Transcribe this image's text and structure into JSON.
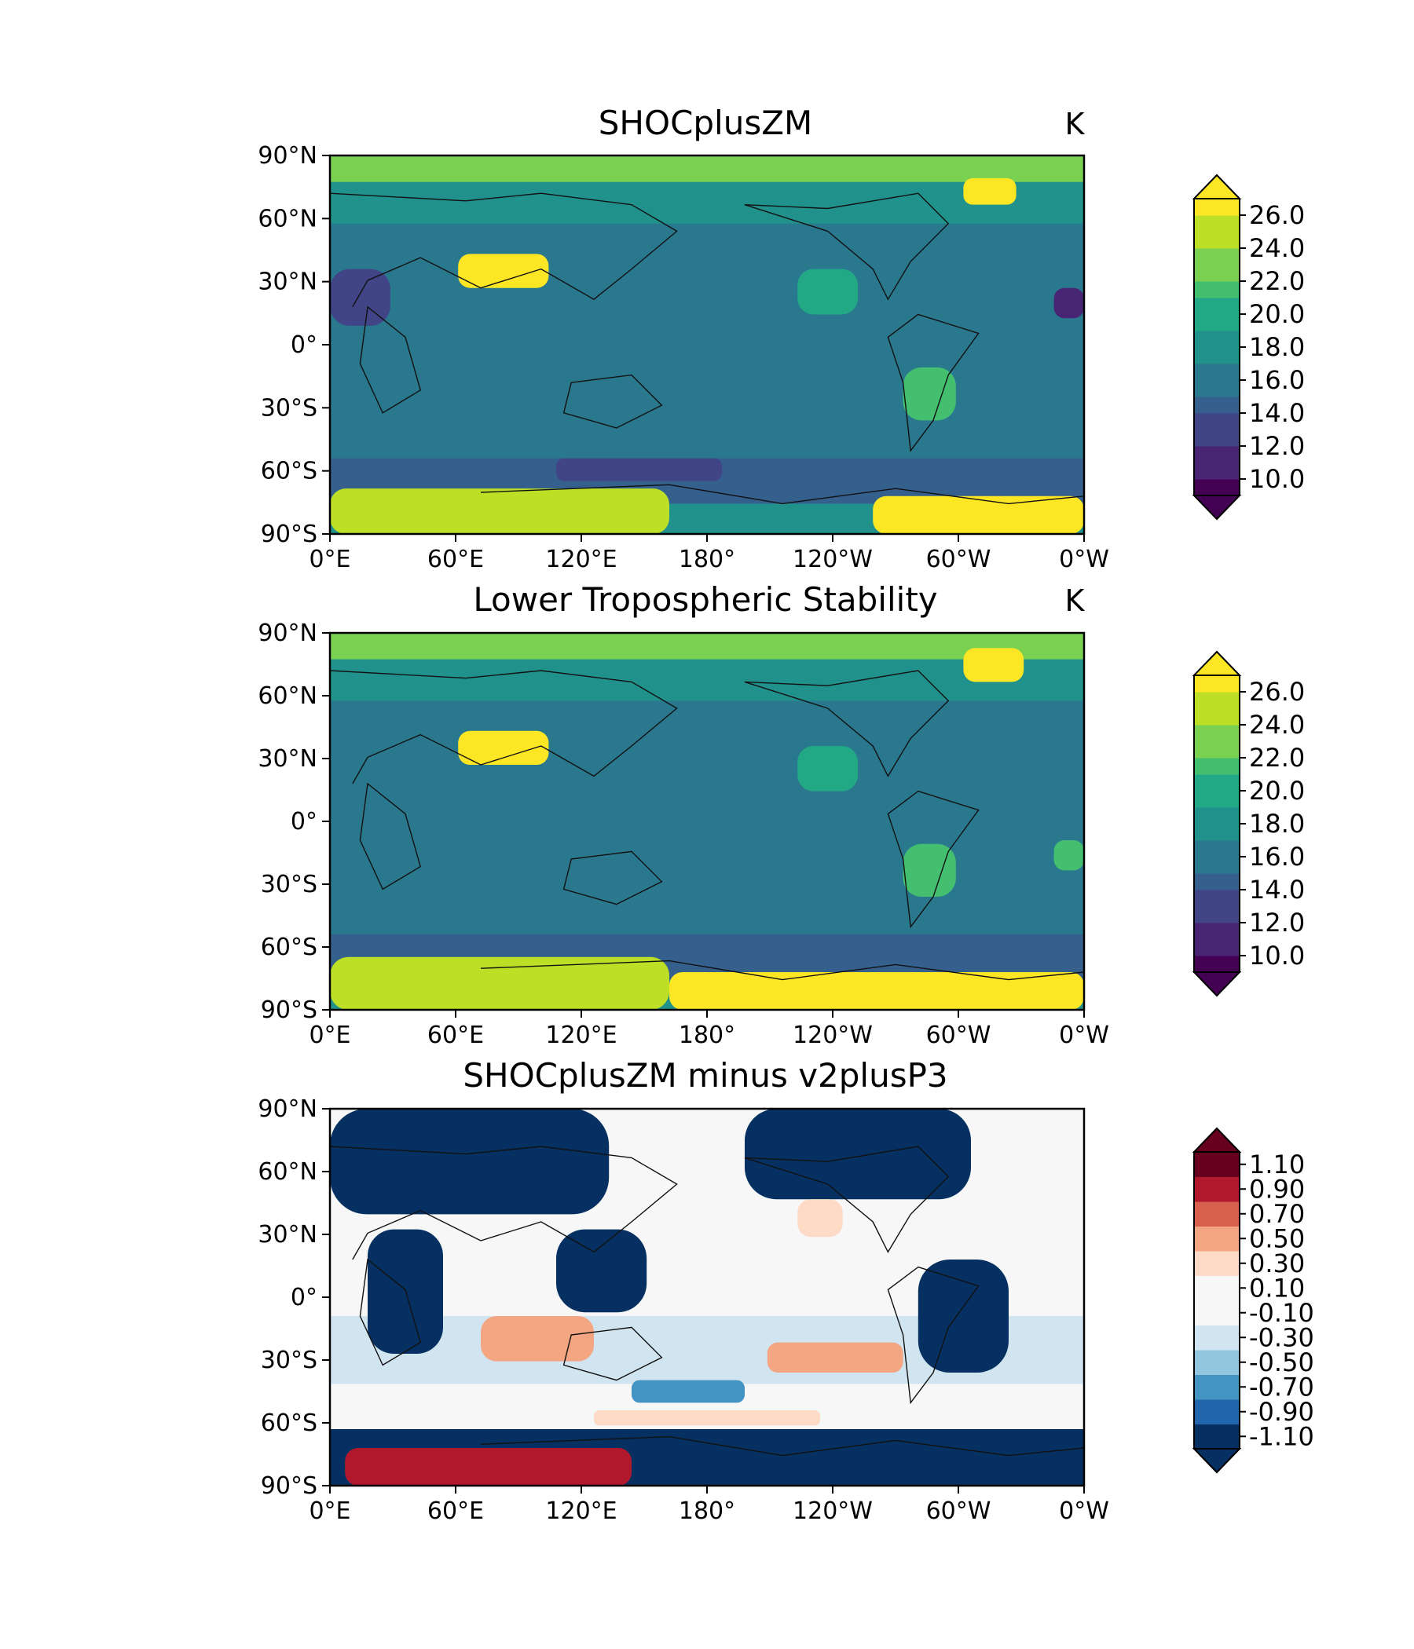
{
  "figure": {
    "panels": [
      {
        "title": "SHOCplusZM",
        "units": "K",
        "colormap": "viridis",
        "colorbar": {
          "levels": [
            9,
            10,
            11,
            12,
            13,
            14,
            15,
            16,
            17,
            18,
            19,
            20,
            21,
            22,
            23,
            24,
            25,
            26,
            27
          ],
          "ticks": [
            "26.0",
            "24.0",
            "22.0",
            "20.0",
            "18.0",
            "16.0",
            "14.0",
            "12.0",
            "10.0"
          ],
          "extend": "both"
        }
      },
      {
        "title": "Lower Tropospheric Stability",
        "units": "K",
        "colormap": "viridis",
        "colorbar": {
          "levels": [
            9,
            10,
            11,
            12,
            13,
            14,
            15,
            16,
            17,
            18,
            19,
            20,
            21,
            22,
            23,
            24,
            25,
            26,
            27
          ],
          "ticks": [
            "26.0",
            "24.0",
            "22.0",
            "20.0",
            "18.0",
            "16.0",
            "14.0",
            "12.0",
            "10.0"
          ],
          "extend": "both"
        }
      },
      {
        "title": "SHOCplusZM minus v2plusP3",
        "units": "",
        "colormap": "RdBu_r",
        "colorbar": {
          "levels": [
            -1.2,
            -1.0,
            -0.8,
            -0.6,
            -0.4,
            -0.2,
            0.0,
            0.2,
            0.4,
            0.6,
            0.8,
            1.0,
            1.2
          ],
          "ticks": [
            "1.10",
            "0.90",
            "0.70",
            "0.50",
            "0.30",
            "0.10",
            "-0.10",
            "-0.30",
            "-0.50",
            "-0.70",
            "-0.90",
            "-1.10"
          ],
          "extend": "both"
        }
      }
    ],
    "axes": {
      "lat_ticks": [
        "90°N",
        "60°N",
        "30°N",
        "0°",
        "30°S",
        "60°S",
        "90°S"
      ],
      "lon_ticks": [
        "0°E",
        "60°E",
        "120°E",
        "180°",
        "120°W",
        "60°W",
        "0°W"
      ]
    },
    "projection": "PlateCarree, central longitude 180°",
    "colors": {
      "viridis": [
        "#440154",
        "#482475",
        "#414487",
        "#355f8d",
        "#2a788e",
        "#21918c",
        "#22a884",
        "#44bf70",
        "#7ad151",
        "#bddf26",
        "#fde725"
      ],
      "RdBu_r": [
        "#053061",
        "#2166ac",
        "#4393c3",
        "#92c5de",
        "#d1e5f0",
        "#f7f7f7",
        "#fddbc7",
        "#f4a582",
        "#d6604d",
        "#b2182b",
        "#67001f"
      ],
      "coastline": "#111111"
    }
  }
}
